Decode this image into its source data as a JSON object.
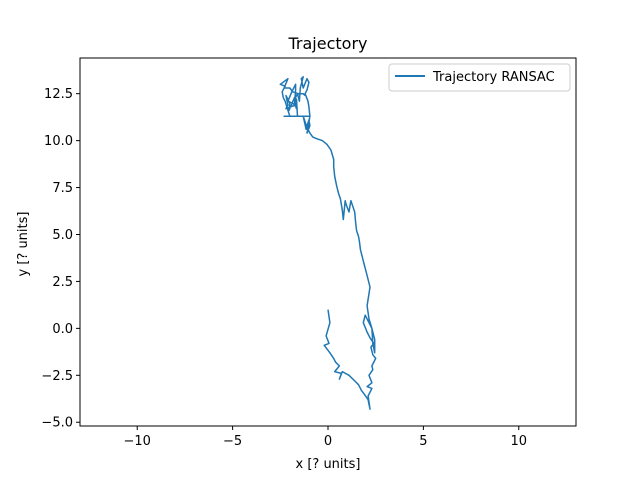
{
  "chart_data": {
    "type": "line",
    "title": "Trajectory",
    "xlabel": "x [? units]",
    "ylabel": "y [? units]",
    "xlim": [
      -13,
      13
    ],
    "ylim": [
      -5.2,
      14.4
    ],
    "xticks": [
      -10,
      -5,
      0,
      5,
      10
    ],
    "yticks": [
      -5.0,
      -2.5,
      0.0,
      2.5,
      5.0,
      7.5,
      10.0,
      12.5
    ],
    "xtick_labels": [
      "−10",
      "−5",
      "0",
      "5",
      "10"
    ],
    "ytick_labels": [
      "−5.0",
      "−2.5",
      "0.0",
      "2.5",
      "5.0",
      "7.5",
      "10.0",
      "12.5"
    ],
    "grid": false,
    "legend": {
      "position": "top-right"
    },
    "colors": {
      "series": "#1f77b4"
    },
    "series": [
      {
        "name": "Trajectory RANSAC",
        "x": [
          0.0,
          0.1,
          -0.1,
          0.05,
          -0.2,
          0.1,
          0.3,
          0.4,
          0.6,
          0.35,
          0.7,
          0.6,
          0.75,
          1.1,
          1.4,
          1.6,
          1.75,
          1.9,
          2.1,
          2.2,
          2.1,
          2.3,
          2.05,
          2.3,
          2.15,
          2.35,
          2.3,
          2.5,
          2.35,
          2.25,
          2.4,
          2.2,
          2.05,
          1.85,
          1.95,
          2.1,
          2.3,
          2.45,
          2.45,
          2.35,
          2.3,
          2.15,
          2.05,
          2.2,
          2.0,
          1.9,
          1.8,
          1.7,
          1.65,
          1.6,
          1.5,
          1.45,
          1.4,
          1.3,
          1.2,
          1.15,
          1.1,
          0.95,
          0.9,
          0.8,
          0.75,
          0.65,
          0.55,
          0.45,
          0.35,
          0.3,
          0.3,
          0.15,
          -0.05,
          -0.3,
          -0.6,
          -0.8,
          -0.95,
          -1.1,
          -1.2,
          -1.3,
          -1.15,
          -1.0,
          -0.95,
          -1.1,
          -0.95,
          -1.0,
          -1.05,
          -1.2,
          -1.1,
          -1.0,
          -1.1,
          -1.3,
          -1.4,
          -1.3,
          -1.45,
          -1.5,
          -1.6,
          -1.7,
          -1.65,
          -1.75,
          -1.7,
          -1.7,
          -1.9,
          -2.1,
          -1.7,
          -2.2,
          -2.1,
          -2.2,
          -2.0,
          -2.05,
          -1.75,
          -1.65,
          -1.6,
          -1.7,
          -1.6,
          -2.0,
          -2.3,
          -1.6,
          -1.2,
          -1.2,
          -1.0,
          -1.1,
          -1.4,
          -1.1,
          -1.3,
          -1.5,
          -1.2,
          -1.5,
          -2.0,
          -2.25,
          -2.35,
          -2.4,
          -2.25,
          -2.5,
          -2.1,
          -2.3,
          -2.0,
          -1.85,
          -1.55,
          -1.4,
          -1.3,
          -1.2
        ],
        "y": [
          1.0,
          0.3,
          -0.4,
          -0.8,
          -0.9,
          -1.3,
          -1.6,
          -1.8,
          -2.0,
          -2.3,
          -2.4,
          -2.7,
          -2.3,
          -2.5,
          -2.8,
          -3.0,
          -3.3,
          -3.5,
          -3.8,
          -4.3,
          -3.6,
          -3.2,
          -3.1,
          -2.9,
          -2.5,
          -2.2,
          -2.0,
          -1.6,
          -1.4,
          -1.0,
          -0.8,
          -0.5,
          -0.2,
          0.3,
          0.7,
          0.4,
          0.0,
          -0.6,
          -1.3,
          -0.8,
          0.0,
          0.5,
          1.2,
          2.2,
          3.0,
          3.4,
          3.8,
          4.2,
          4.6,
          4.9,
          5.2,
          5.6,
          6.2,
          6.5,
          6.8,
          6.5,
          6.2,
          6.6,
          6.8,
          5.8,
          6.3,
          6.9,
          7.2,
          7.6,
          8.1,
          8.6,
          9.0,
          9.5,
          9.8,
          10.0,
          10.1,
          10.2,
          10.4,
          10.7,
          11.0,
          11.3,
          10.6,
          11.1,
          10.8,
          10.4,
          11.3,
          11.8,
          12.1,
          12.5,
          12.7,
          13.1,
          13.3,
          12.8,
          13.3,
          13.4,
          12.8,
          12.1,
          12.5,
          12.3,
          11.7,
          12.0,
          12.7,
          13.0,
          12.6,
          12.1,
          11.9,
          11.7,
          11.9,
          12.4,
          12.0,
          11.6,
          12.3,
          12.2,
          11.3,
          11.3,
          11.3,
          11.3,
          11.3,
          11.3,
          11.3,
          11.3,
          11.3,
          11.3,
          11.3,
          11.3,
          11.3,
          11.3,
          11.3,
          11.3,
          11.3,
          12.1,
          12.3,
          12.6,
          12.9,
          13.0,
          13.3,
          12.8,
          12.8,
          12.6,
          12.5,
          12.5,
          12.5,
          12.4
        ]
      }
    ]
  }
}
